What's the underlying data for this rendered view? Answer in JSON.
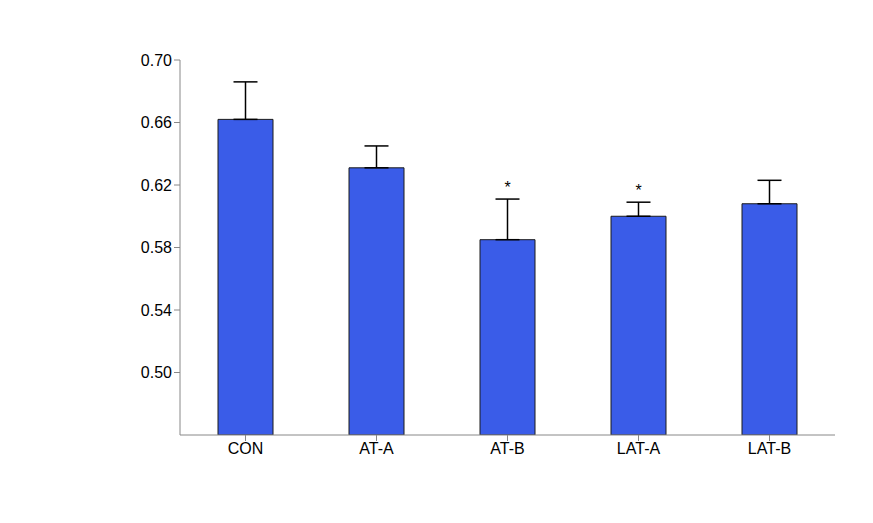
{
  "chart_data": {
    "type": "bar",
    "categories": [
      "CON",
      "AT-A",
      "AT-B",
      "LAT-A",
      "LAT-B"
    ],
    "values": [
      0.662,
      0.631,
      0.585,
      0.6,
      0.608
    ],
    "errors": [
      0.024,
      0.014,
      0.026,
      0.009,
      0.015
    ],
    "annotations": [
      null,
      null,
      "*",
      "*",
      null
    ],
    "color": "#3a5ce8",
    "ylim": [
      0.46,
      0.7
    ],
    "yticks": [
      {
        "value": 0.5,
        "label": "0.50"
      },
      0.54,
      0.58,
      0.62,
      0.66,
      {
        "value": 0.7,
        "label": "0.70"
      }
    ],
    "grid": false
  }
}
